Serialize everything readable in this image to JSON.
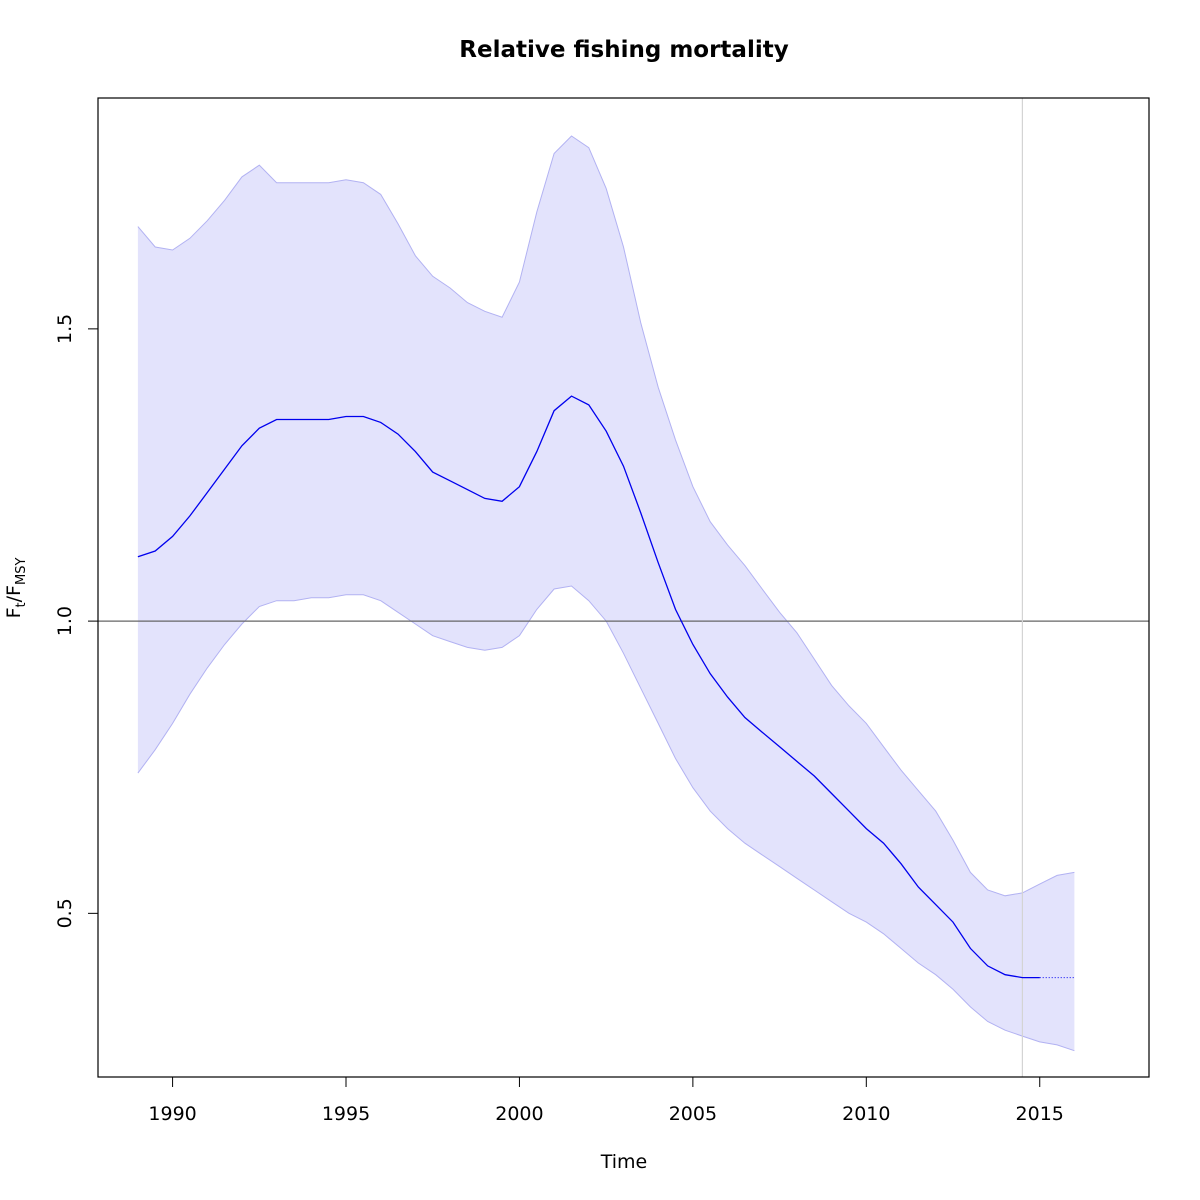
{
  "chart_data": {
    "type": "line",
    "title": "Relative fishing mortality",
    "xlabel": "Time",
    "ylabel": {
      "main": "F",
      "sub1": "t",
      "sep": "/F",
      "sub2": "MSY"
    },
    "xlim": [
      1987.85,
      2018.15
    ],
    "ylim": [
      0.22,
      1.895
    ],
    "x_ticks": [
      1990,
      1995,
      2000,
      2005,
      2010,
      2015
    ],
    "y_ticks": [
      0.5,
      1.0,
      1.5
    ],
    "y_tick_labels": [
      "0.5",
      "1.0",
      "1.5"
    ],
    "reference_hline": 1.0,
    "reference_vline": 2014.5,
    "colors": {
      "estimate": "#0000ee",
      "band_fill": "#e3e3fc",
      "band_edge": "#b2b2f2",
      "hline": "#666666",
      "vline": "#d4d4d4"
    },
    "series": [
      {
        "role": "estimate",
        "x": [
          1989.0,
          1989.5,
          1990.0,
          1990.5,
          1991.0,
          1991.5,
          1992.0,
          1992.5,
          1993.0,
          1993.5,
          1994.0,
          1994.5,
          1995.0,
          1995.5,
          1996.0,
          1996.5,
          1997.0,
          1997.5,
          1998.0,
          1998.5,
          1999.0,
          1999.5,
          2000.0,
          2000.5,
          2001.0,
          2001.5,
          2002.0,
          2002.5,
          2003.0,
          2003.5,
          2004.0,
          2004.5,
          2005.0,
          2005.5,
          2006.0,
          2006.5,
          2007.0,
          2007.5,
          2008.0,
          2008.5,
          2009.0,
          2009.5,
          2010.0,
          2010.5,
          2011.0,
          2011.5,
          2012.0,
          2012.5,
          2013.0,
          2013.5,
          2014.0,
          2014.5,
          2015.0
        ],
        "y": [
          1.11,
          1.12,
          1.145,
          1.18,
          1.22,
          1.26,
          1.3,
          1.33,
          1.345,
          1.345,
          1.345,
          1.345,
          1.35,
          1.35,
          1.34,
          1.32,
          1.29,
          1.255,
          1.24,
          1.225,
          1.21,
          1.205,
          1.23,
          1.29,
          1.36,
          1.385,
          1.37,
          1.325,
          1.265,
          1.185,
          1.1,
          1.02,
          0.96,
          0.91,
          0.87,
          0.835,
          0.81,
          0.785,
          0.76,
          0.735,
          0.705,
          0.675,
          0.645,
          0.62,
          0.585,
          0.545,
          0.515,
          0.485,
          0.44,
          0.41,
          0.395,
          0.39,
          0.39
        ]
      },
      {
        "role": "prediction",
        "x": [
          2015.0,
          2016.0
        ],
        "y": [
          0.39,
          0.39
        ]
      },
      {
        "role": "upper_ci",
        "x": [
          1989.0,
          1989.5,
          1990.0,
          1990.5,
          1991.0,
          1991.5,
          1992.0,
          1992.5,
          1993.0,
          1993.5,
          1994.0,
          1994.5,
          1995.0,
          1995.5,
          1996.0,
          1996.5,
          1997.0,
          1997.5,
          1998.0,
          1998.5,
          1999.0,
          1999.5,
          2000.0,
          2000.5,
          2001.0,
          2001.5,
          2002.0,
          2002.5,
          2003.0,
          2003.5,
          2004.0,
          2004.5,
          2005.0,
          2005.5,
          2006.0,
          2006.5,
          2007.0,
          2007.5,
          2008.0,
          2008.5,
          2009.0,
          2009.5,
          2010.0,
          2010.5,
          2011.0,
          2011.5,
          2012.0,
          2012.5,
          2013.0,
          2013.5,
          2014.0,
          2014.5,
          2015.0,
          2015.5,
          2016.0
        ],
        "y": [
          1.675,
          1.64,
          1.635,
          1.655,
          1.685,
          1.72,
          1.76,
          1.78,
          1.75,
          1.75,
          1.75,
          1.75,
          1.755,
          1.75,
          1.73,
          1.68,
          1.625,
          1.59,
          1.57,
          1.545,
          1.53,
          1.52,
          1.58,
          1.7,
          1.8,
          1.83,
          1.81,
          1.74,
          1.64,
          1.51,
          1.4,
          1.31,
          1.23,
          1.17,
          1.13,
          1.095,
          1.055,
          1.015,
          0.98,
          0.935,
          0.89,
          0.855,
          0.825,
          0.785,
          0.745,
          0.71,
          0.675,
          0.625,
          0.57,
          0.54,
          0.53,
          0.535,
          0.55,
          0.565,
          0.57
        ]
      },
      {
        "role": "lower_ci",
        "x": [
          1989.0,
          1989.5,
          1990.0,
          1990.5,
          1991.0,
          1991.5,
          1992.0,
          1992.5,
          1993.0,
          1993.5,
          1994.0,
          1994.5,
          1995.0,
          1995.5,
          1996.0,
          1996.5,
          1997.0,
          1997.5,
          1998.0,
          1998.5,
          1999.0,
          1999.5,
          2000.0,
          2000.5,
          2001.0,
          2001.5,
          2002.0,
          2002.5,
          2003.0,
          2003.5,
          2004.0,
          2004.5,
          2005.0,
          2005.5,
          2006.0,
          2006.5,
          2007.0,
          2007.5,
          2008.0,
          2008.5,
          2009.0,
          2009.5,
          2010.0,
          2010.5,
          2011.0,
          2011.5,
          2012.0,
          2012.5,
          2013.0,
          2013.5,
          2014.0,
          2014.5,
          2015.0,
          2015.5,
          2016.0
        ],
        "y": [
          0.74,
          0.78,
          0.825,
          0.875,
          0.92,
          0.96,
          0.995,
          1.025,
          1.035,
          1.035,
          1.04,
          1.04,
          1.045,
          1.045,
          1.035,
          1.015,
          0.995,
          0.975,
          0.965,
          0.955,
          0.95,
          0.955,
          0.975,
          1.02,
          1.055,
          1.06,
          1.035,
          1.0,
          0.945,
          0.885,
          0.825,
          0.765,
          0.715,
          0.675,
          0.645,
          0.62,
          0.6,
          0.58,
          0.56,
          0.54,
          0.52,
          0.5,
          0.485,
          0.465,
          0.44,
          0.415,
          0.395,
          0.37,
          0.34,
          0.315,
          0.3,
          0.29,
          0.28,
          0.275,
          0.265
        ]
      }
    ]
  }
}
